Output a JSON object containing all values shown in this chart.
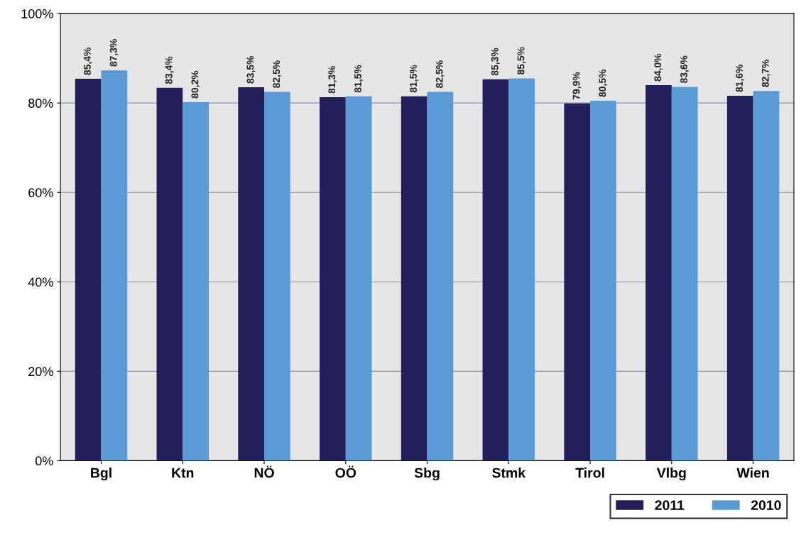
{
  "chart_data": {
    "type": "bar",
    "categories": [
      "Bgl",
      "Ktn",
      "NÖ",
      "OÖ",
      "Sbg",
      "Stmk",
      "Tirol",
      "Vlbg",
      "Wien"
    ],
    "series": [
      {
        "name": "2011",
        "color": "#231f5c",
        "values": [
          85.4,
          83.4,
          83.5,
          81.3,
          81.5,
          85.3,
          79.9,
          84.0,
          81.6
        ],
        "value_labels": [
          "85,4%",
          "83,4%",
          "83,5%",
          "81,3%",
          "81,5%",
          "85,3%",
          "79,9%",
          "84,0%",
          "81,6%"
        ]
      },
      {
        "name": "2010",
        "color": "#5b9bd5",
        "values": [
          87.3,
          80.2,
          82.5,
          81.5,
          82.5,
          85.5,
          80.5,
          83.6,
          82.7
        ],
        "value_labels": [
          "87,3%",
          "80,2%",
          "82,5%",
          "81,5%",
          "82,5%",
          "85,5%",
          "80,5%",
          "83,6%",
          "82,7%"
        ]
      }
    ],
    "ylim": [
      0,
      100
    ],
    "yticks": [
      {
        "value": 0,
        "label": "0%"
      },
      {
        "value": 20,
        "label": "20%"
      },
      {
        "value": 40,
        "label": "40%"
      },
      {
        "value": 60,
        "label": "60%"
      },
      {
        "value": 80,
        "label": "80%"
      },
      {
        "value": 100,
        "label": "100%"
      }
    ],
    "grid": "y",
    "legend": "bottom right"
  }
}
